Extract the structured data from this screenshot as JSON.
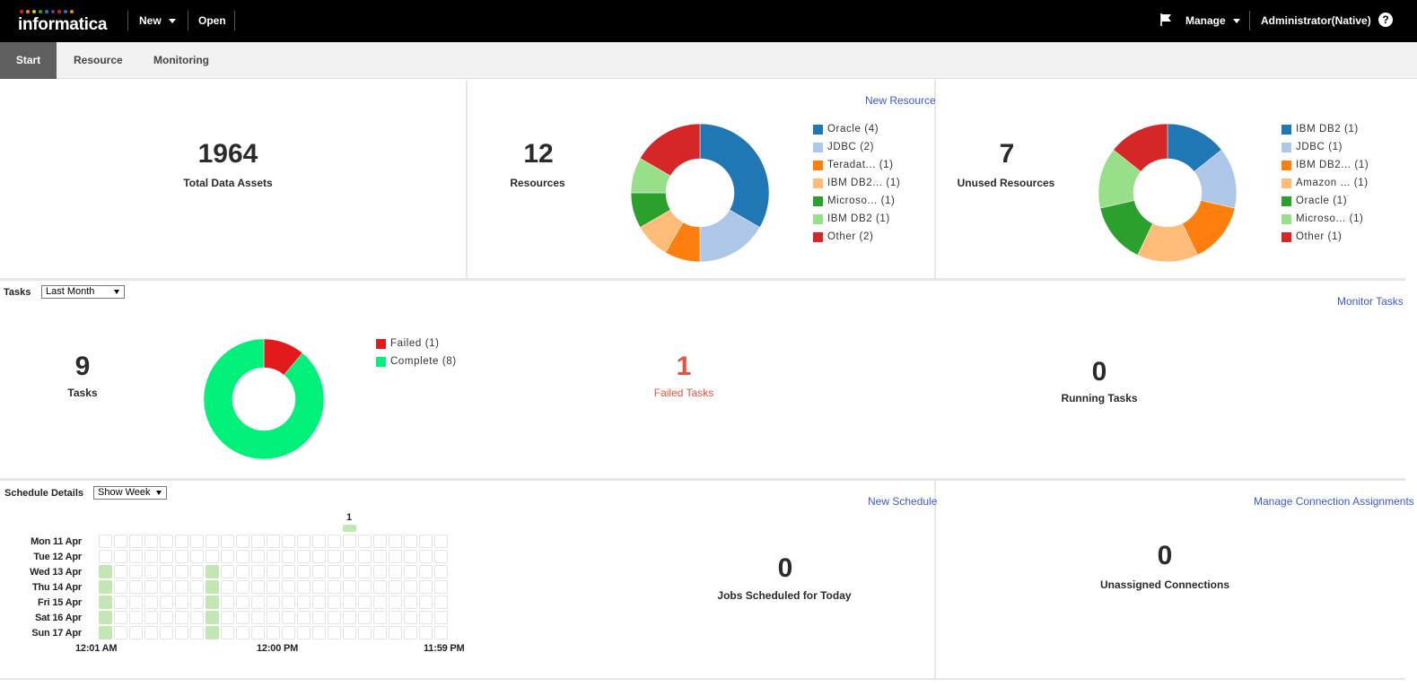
{
  "header": {
    "logo": "informatica",
    "new_label": "New",
    "open_label": "Open",
    "manage_label": "Manage",
    "user_label": "Administrator(Native)",
    "help_label": "?"
  },
  "tabs": [
    {
      "label": "Start",
      "active": true
    },
    {
      "label": "Resource",
      "active": false
    },
    {
      "label": "Monitoring",
      "active": false
    }
  ],
  "assets": {
    "count": "1964",
    "label": "Total Data Assets"
  },
  "resources": {
    "count": "12",
    "label": "Resources",
    "link": "New Resource",
    "legend": [
      {
        "label": "Oracle",
        "value": "(4)",
        "color": "#1f77b4"
      },
      {
        "label": "JDBC",
        "value": "(2)",
        "color": "#aec7e8"
      },
      {
        "label": "Teradat...",
        "value": "(1)",
        "color": "#ff7f0e"
      },
      {
        "label": "IBM DB2...",
        "value": "(1)",
        "color": "#ffbb78"
      },
      {
        "label": "Microso...",
        "value": "(1)",
        "color": "#2ca02c"
      },
      {
        "label": "IBM DB2",
        "value": "(1)",
        "color": "#98df8a"
      },
      {
        "label": "Other",
        "value": "(2)",
        "color": "#d62728"
      }
    ]
  },
  "unused": {
    "count": "7",
    "label": "Unused Resources",
    "legend": [
      {
        "label": "IBM DB2",
        "value": "(1)",
        "color": "#1f77b4"
      },
      {
        "label": "JDBC",
        "value": "(1)",
        "color": "#aec7e8"
      },
      {
        "label": "IBM DB2...",
        "value": "(1)",
        "color": "#ff7f0e"
      },
      {
        "label": "Amazon ...",
        "value": "(1)",
        "color": "#ffbb78"
      },
      {
        "label": "Oracle",
        "value": "(1)",
        "color": "#2ca02c"
      },
      {
        "label": "Microso...",
        "value": "(1)",
        "color": "#98df8a"
      },
      {
        "label": "Other",
        "value": "(1)",
        "color": "#d62728"
      }
    ]
  },
  "tasks": {
    "title": "Tasks",
    "filter": "Last Month",
    "link": "Monitor Tasks",
    "count": "9",
    "label": "Tasks",
    "legend": [
      {
        "label": "Failed",
        "value": "(1)",
        "color": "#e31a1c"
      },
      {
        "label": "Complete",
        "value": "(8)",
        "color": "#00f07a"
      }
    ],
    "failed_count": "1",
    "failed_label": "Failed Tasks",
    "failed_color": "#e0533d",
    "running_count": "0",
    "running_label": "Running Tasks"
  },
  "schedule": {
    "title": "Schedule Details",
    "filter": "Show Week",
    "link": "New Schedule",
    "days": [
      "Mon 11 Apr",
      "Tue 12 Apr",
      "Wed 13 Apr",
      "Thu 14 Apr",
      "Fri 15 Apr",
      "Sat 16 Apr",
      "Sun 17 Apr"
    ],
    "times": [
      "12:01 AM",
      "12:00 PM",
      "11:59 PM"
    ],
    "peak_label": "1",
    "active_days": [
      2,
      3,
      4,
      5,
      6
    ],
    "active_cols": [
      0,
      7
    ],
    "highlight_col": 16,
    "jobs_count": "0",
    "jobs_label": "Jobs Scheduled for Today"
  },
  "connections": {
    "link": "Manage Connection Assignments",
    "count": "0",
    "label": "Unassigned Connections"
  },
  "chart_data": [
    {
      "type": "pie",
      "title": "Resources",
      "categories": [
        "Oracle",
        "JDBC",
        "Teradat...",
        "IBM DB2...",
        "Microso...",
        "IBM DB2",
        "Other"
      ],
      "values": [
        4,
        2,
        1,
        1,
        1,
        1,
        2
      ],
      "colors": [
        "#1f77b4",
        "#aec7e8",
        "#ff7f0e",
        "#ffbb78",
        "#2ca02c",
        "#98df8a",
        "#d62728"
      ]
    },
    {
      "type": "pie",
      "title": "Unused Resources",
      "categories": [
        "IBM DB2",
        "JDBC",
        "IBM DB2...",
        "Amazon ...",
        "Oracle",
        "Microso...",
        "Other"
      ],
      "values": [
        1,
        1,
        1,
        1,
        1,
        1,
        1
      ],
      "colors": [
        "#1f77b4",
        "#aec7e8",
        "#ff7f0e",
        "#ffbb78",
        "#2ca02c",
        "#98df8a",
        "#d62728"
      ]
    },
    {
      "type": "pie",
      "title": "Tasks",
      "categories": [
        "Failed",
        "Complete"
      ],
      "values": [
        1,
        8
      ],
      "colors": [
        "#e31a1c",
        "#00f07a"
      ]
    }
  ]
}
